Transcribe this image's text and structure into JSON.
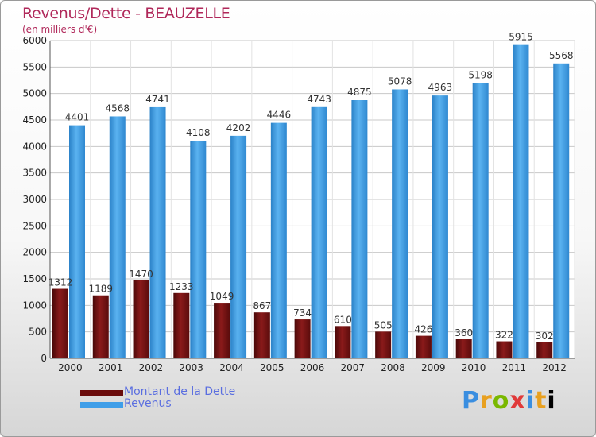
{
  "title": "Revenus/Dette - BEAUZELLE",
  "subtitle": "(en milliers d'€)",
  "logo": "Proxiti",
  "colors": {
    "dette": "#7a1010",
    "revenus": "#3f9ee8",
    "title": "#b0285a",
    "legend_text": "#5a6ee0"
  },
  "chart_data": {
    "type": "bar",
    "categories": [
      "2000",
      "2001",
      "2002",
      "2003",
      "2004",
      "2005",
      "2006",
      "2007",
      "2008",
      "2009",
      "2010",
      "2011",
      "2012"
    ],
    "series": [
      {
        "name": "Montant de la Dette",
        "values": [
          1312,
          1189,
          1470,
          1233,
          1049,
          867,
          734,
          610,
          505,
          426,
          360,
          322,
          302
        ]
      },
      {
        "name": "Revenus",
        "values": [
          4401,
          4568,
          4741,
          4108,
          4202,
          4446,
          4743,
          4875,
          5078,
          4963,
          5198,
          5915,
          5568
        ]
      }
    ],
    "yticks": [
      0,
      500,
      1000,
      1500,
      2000,
      2500,
      3000,
      3500,
      4000,
      4500,
      5000,
      5500,
      6000
    ],
    "ylim": [
      0,
      6000
    ],
    "grid": true,
    "legend": "bottom-left"
  }
}
